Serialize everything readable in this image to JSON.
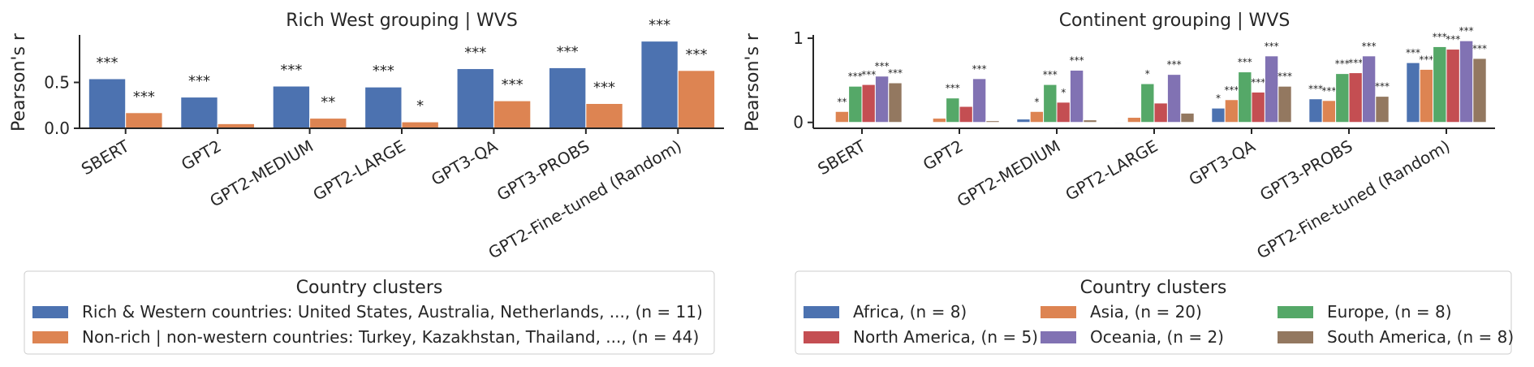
{
  "chart_data": [
    {
      "type": "bar",
      "title": "Rich West grouping | WVS",
      "xlabel": "",
      "ylabel": "Pearson's r",
      "ylim": [
        0,
        1.0
      ],
      "yticks": [
        0,
        0.5
      ],
      "ytick_labels": [
        "0.0",
        "0.5"
      ],
      "categories": [
        "SBERT",
        "GPT2",
        "GPT2-MEDIUM",
        "GPT2-LARGE",
        "GPT3-QA",
        "GPT3-PROBS",
        "GPT2-Fine-tuned (Random)"
      ],
      "series": [
        {
          "name": "Rich & Western countries: United States, Australia, Netherlands, ..., (n = 11)",
          "color": "#4c72b0",
          "values": [
            0.54,
            0.34,
            0.46,
            0.45,
            0.65,
            0.66,
            0.95
          ],
          "labels": [
            "***",
            "***",
            "***",
            "***",
            "***",
            "***",
            "***"
          ]
        },
        {
          "name": "Non-rich | non-western countries: Turkey, Kazakhstan, Thailand, ..., (n = 44)",
          "color": "#dd8452",
          "values": [
            0.17,
            0.05,
            0.11,
            0.07,
            0.3,
            0.27,
            0.63
          ],
          "labels": [
            "***",
            "",
            "**",
            "*",
            "***",
            "***",
            "***"
          ]
        }
      ],
      "legend": {
        "title": "Country clusters",
        "placement": "bottom",
        "columns": 1
      },
      "grid": false
    },
    {
      "type": "bar",
      "title": "Continent grouping | WVS",
      "xlabel": "",
      "ylabel": "Pearson's r",
      "ylim": [
        -0.07,
        1.02
      ],
      "yticks": [
        0,
        1
      ],
      "ytick_labels": [
        "0",
        "1"
      ],
      "categories": [
        "SBERT",
        "GPT2",
        "GPT2-MEDIUM",
        "GPT2-LARGE",
        "GPT3-QA",
        "GPT3-PROBS",
        "GPT2-Fine-tuned (Random)"
      ],
      "series": [
        {
          "name": "Africa, (n = 8)",
          "color": "#4c72b0",
          "values": [
            0.0,
            0.0,
            0.04,
            -0.01,
            0.17,
            0.28,
            0.71
          ],
          "labels": [
            "",
            "",
            "",
            "",
            "*",
            "***",
            "***"
          ]
        },
        {
          "name": "Asia, (n = 20)",
          "color": "#dd8452",
          "values": [
            0.13,
            0.05,
            0.13,
            0.06,
            0.27,
            0.26,
            0.63
          ],
          "labels": [
            "**",
            "",
            "*",
            "",
            "***",
            "***",
            "***"
          ]
        },
        {
          "name": "Europe, (n = 8)",
          "color": "#55a868",
          "values": [
            0.43,
            0.29,
            0.45,
            0.46,
            0.6,
            0.58,
            0.9
          ],
          "labels": [
            "***",
            "***",
            "***",
            "*",
            "***",
            "***",
            "***"
          ]
        },
        {
          "name": "North America, (n = 5)",
          "color": "#c44e52",
          "values": [
            0.45,
            0.19,
            0.24,
            0.23,
            0.36,
            0.59,
            0.87
          ],
          "labels": [
            "***",
            "",
            "*",
            "",
            "***",
            "***",
            "***"
          ]
        },
        {
          "name": "Oceania, (n = 2)",
          "color": "#8172b3",
          "values": [
            0.55,
            0.52,
            0.62,
            0.57,
            0.79,
            0.79,
            0.97
          ],
          "labels": [
            "***",
            "***",
            "***",
            "***",
            "***",
            "***",
            "***"
          ]
        },
        {
          "name": "South America, (n = 8)",
          "color": "#937860",
          "values": [
            0.47,
            0.02,
            0.03,
            0.11,
            0.43,
            0.31,
            0.76
          ],
          "labels": [
            "***",
            "",
            "",
            "",
            "***",
            "***",
            "***"
          ]
        }
      ],
      "legend": {
        "title": "Country clusters",
        "placement": "bottom",
        "columns": 3
      },
      "grid": false
    }
  ]
}
